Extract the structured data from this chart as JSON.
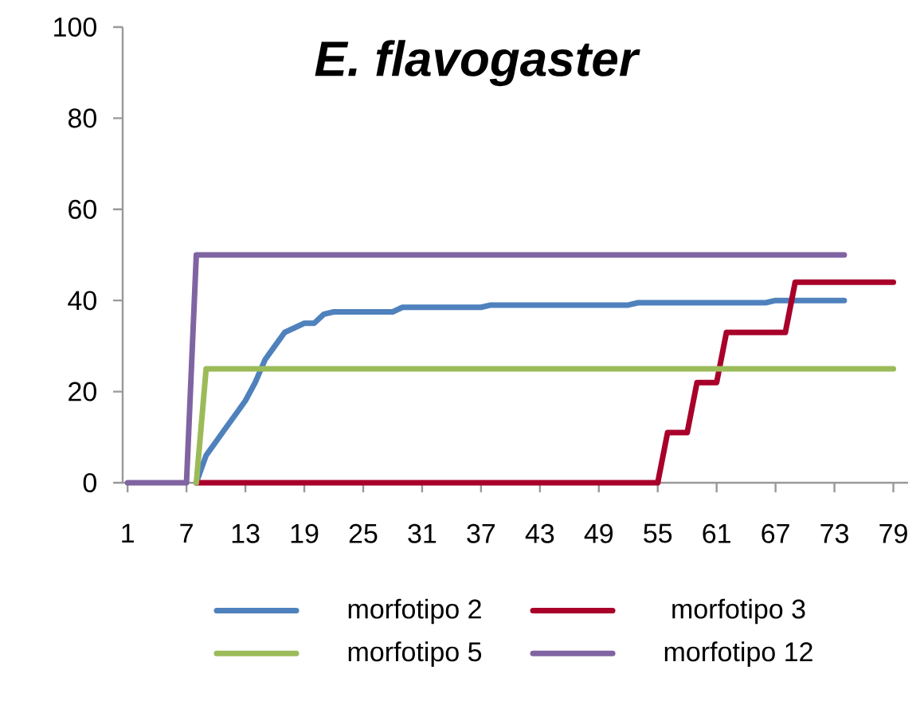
{
  "chart_data": {
    "type": "line",
    "title": "E. flavogaster",
    "xlim": [
      0.5,
      80.5
    ],
    "xticks": [
      1,
      7,
      13,
      19,
      25,
      31,
      37,
      43,
      49,
      55,
      61,
      67,
      73,
      79
    ],
    "ylim": [
      0,
      100
    ],
    "yticks": [
      0,
      20,
      40,
      60,
      80,
      100
    ],
    "legend": "bottom",
    "series": [
      {
        "name": "morfotipo 2",
        "color": "#4f81bd",
        "x": [
          8,
          9,
          10,
          11,
          12,
          13,
          14,
          15,
          16,
          17,
          18,
          19,
          20,
          21,
          22,
          28,
          29,
          37,
          38,
          52,
          53,
          66,
          67,
          74
        ],
        "values": [
          0,
          6,
          9,
          12,
          15,
          18,
          22,
          27,
          30,
          33,
          34,
          35,
          35,
          37,
          37.5,
          37.5,
          38.5,
          38.5,
          39,
          39,
          39.5,
          39.5,
          40,
          40
        ]
      },
      {
        "name": "morfotipo 3",
        "color": "#a8002a",
        "x": [
          8,
          55,
          56,
          58,
          59,
          61,
          62,
          68,
          69,
          79
        ],
        "values": [
          0,
          0,
          11,
          11,
          22,
          22,
          33,
          33,
          44,
          44
        ]
      },
      {
        "name": "morfotipo 5",
        "color": "#9bbb59",
        "x": [
          8,
          9,
          79
        ],
        "values": [
          0,
          25,
          25
        ]
      },
      {
        "name": "morfotipo 12",
        "color": "#8064a2",
        "x": [
          1,
          7,
          8,
          74
        ],
        "values": [
          0,
          0,
          50,
          50
        ]
      }
    ]
  }
}
